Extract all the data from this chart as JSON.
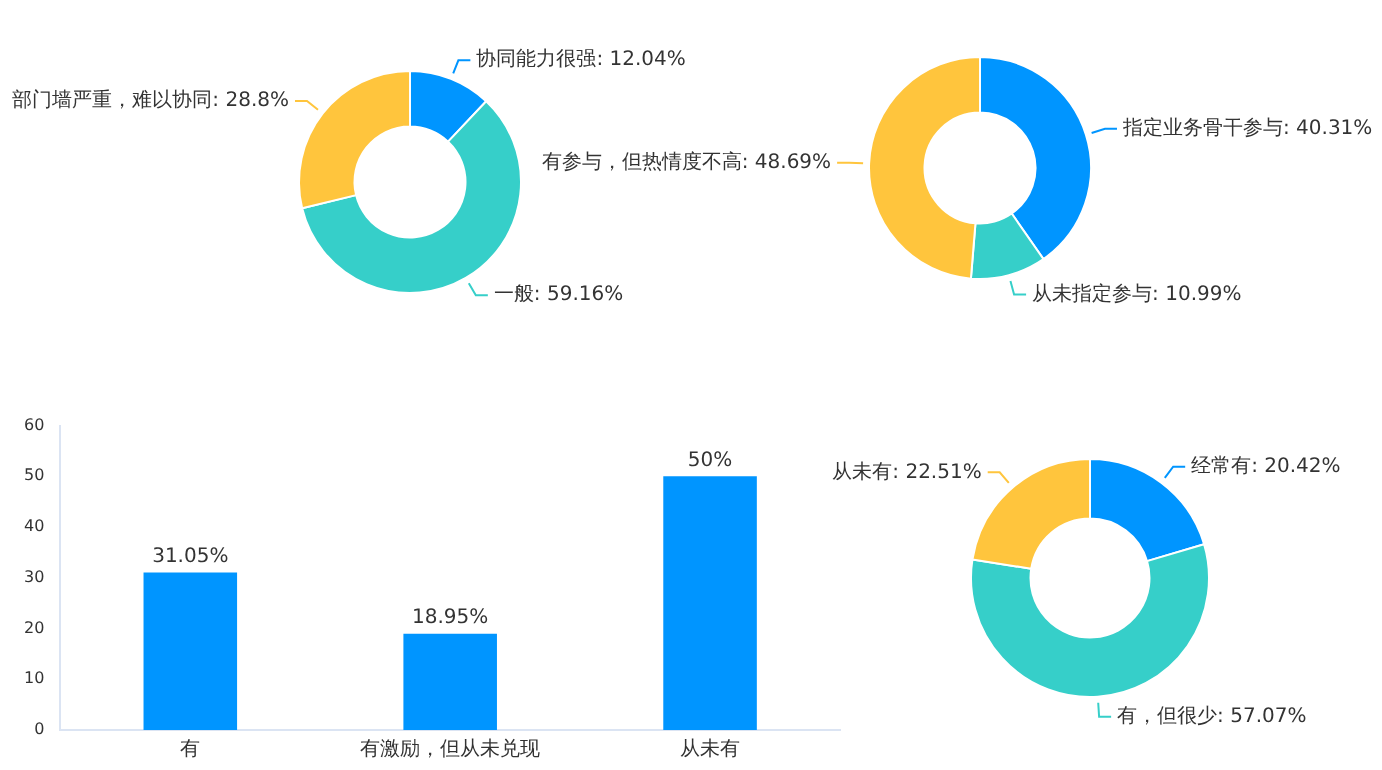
{
  "chart_data": [
    {
      "type": "donut",
      "categories": [
        "协同能力很强",
        "一般",
        "部门墙严重，难以协同"
      ],
      "values": [
        12.04,
        59.16,
        28.8
      ],
      "colors": [
        "#0095ff",
        "#36cfc9",
        "#ffc53d"
      ],
      "value_labels": [
        "12.04%",
        "59.16%",
        "28.8%"
      ]
    },
    {
      "type": "donut",
      "categories": [
        "指定业务骨干参与",
        "从未指定参与",
        "有参与，但热情度不高"
      ],
      "values": [
        40.31,
        10.99,
        48.69
      ],
      "colors": [
        "#0095ff",
        "#36cfc9",
        "#ffc53d"
      ],
      "value_labels": [
        "40.31%",
        "10.99%",
        "48.69%"
      ]
    },
    {
      "type": "bar",
      "categories": [
        "有",
        "有激励，但从未兑现",
        "从未有"
      ],
      "values": [
        31.05,
        18.95,
        50
      ],
      "color": "#0095ff",
      "value_labels": [
        "31.05%",
        "18.95%",
        "50%"
      ],
      "ylim": [
        0,
        60
      ],
      "yticks": [
        0,
        10,
        20,
        30,
        40,
        50,
        60
      ],
      "grid": false
    },
    {
      "type": "donut",
      "categories": [
        "经常有",
        "有，但很少",
        "从未有"
      ],
      "values": [
        20.42,
        57.07,
        22.51
      ],
      "colors": [
        "#0095ff",
        "#36cfc9",
        "#ffc53d"
      ],
      "value_labels": [
        "20.42%",
        "57.07%",
        "22.51%"
      ]
    }
  ]
}
